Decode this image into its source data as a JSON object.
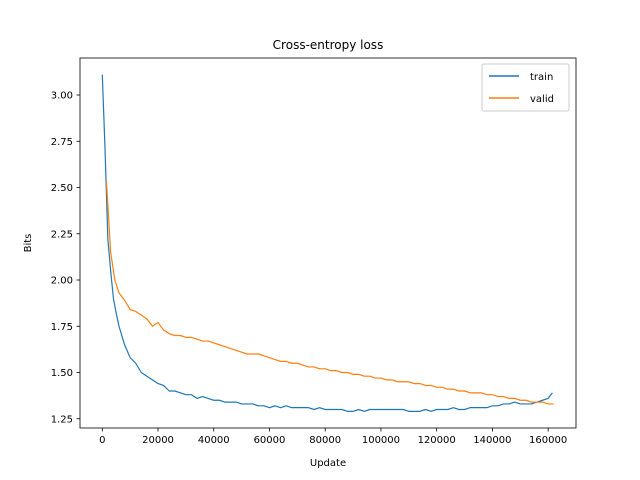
{
  "chart_data": {
    "type": "line",
    "title": "Cross-entropy loss",
    "xlabel": "Update",
    "ylabel": "Bits",
    "xlim": [
      -8000,
      170000
    ],
    "ylim": [
      1.2,
      3.2
    ],
    "xticks": [
      0,
      20000,
      40000,
      60000,
      80000,
      100000,
      120000,
      140000,
      160000
    ],
    "xtick_labels": [
      "0",
      "20000",
      "40000",
      "60000",
      "80000",
      "100000",
      "120000",
      "140000",
      "160000"
    ],
    "yticks": [
      1.25,
      1.5,
      1.75,
      2.0,
      2.25,
      2.5,
      2.75,
      3.0
    ],
    "ytick_labels": [
      "1.25",
      "1.50",
      "1.75",
      "2.00",
      "2.25",
      "2.50",
      "2.75",
      "3.00"
    ],
    "grid": false,
    "legend_position": "upper right",
    "series": [
      {
        "name": "train",
        "color": "#1f77b4",
        "x": [
          0,
          1000,
          2000,
          3000,
          4000,
          5000,
          6000,
          7000,
          8000,
          10000,
          12000,
          14000,
          16000,
          18000,
          20000,
          22000,
          24000,
          26000,
          28000,
          30000,
          32000,
          34000,
          36000,
          38000,
          40000,
          42000,
          44000,
          46000,
          48000,
          50000,
          52000,
          54000,
          56000,
          58000,
          60000,
          62000,
          64000,
          66000,
          68000,
          70000,
          72000,
          74000,
          76000,
          78000,
          80000,
          82000,
          84000,
          86000,
          88000,
          90000,
          92000,
          94000,
          96000,
          98000,
          100000,
          102000,
          104000,
          106000,
          108000,
          110000,
          112000,
          114000,
          116000,
          118000,
          120000,
          122000,
          124000,
          126000,
          128000,
          130000,
          132000,
          134000,
          136000,
          138000,
          140000,
          142000,
          144000,
          146000,
          148000,
          150000,
          152000,
          154000,
          156000,
          158000,
          160000,
          161500
        ],
        "y": [
          3.11,
          2.7,
          2.22,
          2.05,
          1.9,
          1.82,
          1.75,
          1.7,
          1.65,
          1.58,
          1.55,
          1.5,
          1.48,
          1.46,
          1.44,
          1.43,
          1.4,
          1.4,
          1.39,
          1.38,
          1.38,
          1.36,
          1.37,
          1.36,
          1.35,
          1.35,
          1.34,
          1.34,
          1.34,
          1.33,
          1.33,
          1.33,
          1.32,
          1.32,
          1.31,
          1.32,
          1.31,
          1.32,
          1.31,
          1.31,
          1.31,
          1.31,
          1.3,
          1.31,
          1.3,
          1.3,
          1.3,
          1.3,
          1.29,
          1.29,
          1.3,
          1.29,
          1.3,
          1.3,
          1.3,
          1.3,
          1.3,
          1.3,
          1.3,
          1.29,
          1.29,
          1.29,
          1.3,
          1.29,
          1.3,
          1.3,
          1.3,
          1.31,
          1.3,
          1.3,
          1.31,
          1.31,
          1.31,
          1.31,
          1.32,
          1.32,
          1.33,
          1.33,
          1.34,
          1.33,
          1.33,
          1.33,
          1.34,
          1.35,
          1.36,
          1.39
        ]
      },
      {
        "name": "valid",
        "color": "#ff7f0e",
        "x": [
          1500,
          3000,
          4500,
          6000,
          8000,
          10000,
          12000,
          14000,
          16000,
          18000,
          20000,
          22000,
          24000,
          26000,
          28000,
          30000,
          32000,
          34000,
          36000,
          38000,
          40000,
          42000,
          44000,
          46000,
          48000,
          50000,
          52000,
          54000,
          56000,
          58000,
          60000,
          62000,
          64000,
          66000,
          68000,
          70000,
          72000,
          74000,
          76000,
          78000,
          80000,
          82000,
          84000,
          86000,
          88000,
          90000,
          92000,
          94000,
          96000,
          98000,
          100000,
          102000,
          104000,
          106000,
          108000,
          110000,
          112000,
          114000,
          116000,
          118000,
          120000,
          122000,
          124000,
          126000,
          128000,
          130000,
          132000,
          134000,
          136000,
          138000,
          140000,
          142000,
          144000,
          146000,
          148000,
          150000,
          152000,
          154000,
          156000,
          158000,
          160000,
          162000
        ],
        "y": [
          2.53,
          2.15,
          2.0,
          1.93,
          1.89,
          1.84,
          1.83,
          1.81,
          1.79,
          1.75,
          1.77,
          1.73,
          1.71,
          1.7,
          1.7,
          1.69,
          1.69,
          1.68,
          1.67,
          1.67,
          1.66,
          1.65,
          1.64,
          1.63,
          1.62,
          1.61,
          1.6,
          1.6,
          1.6,
          1.59,
          1.58,
          1.57,
          1.56,
          1.56,
          1.55,
          1.55,
          1.54,
          1.53,
          1.53,
          1.52,
          1.52,
          1.51,
          1.51,
          1.5,
          1.5,
          1.49,
          1.49,
          1.48,
          1.48,
          1.47,
          1.47,
          1.46,
          1.46,
          1.45,
          1.45,
          1.45,
          1.44,
          1.44,
          1.43,
          1.43,
          1.42,
          1.42,
          1.41,
          1.41,
          1.4,
          1.4,
          1.39,
          1.39,
          1.39,
          1.38,
          1.38,
          1.37,
          1.37,
          1.36,
          1.36,
          1.35,
          1.35,
          1.34,
          1.34,
          1.34,
          1.33,
          1.33
        ]
      }
    ]
  }
}
